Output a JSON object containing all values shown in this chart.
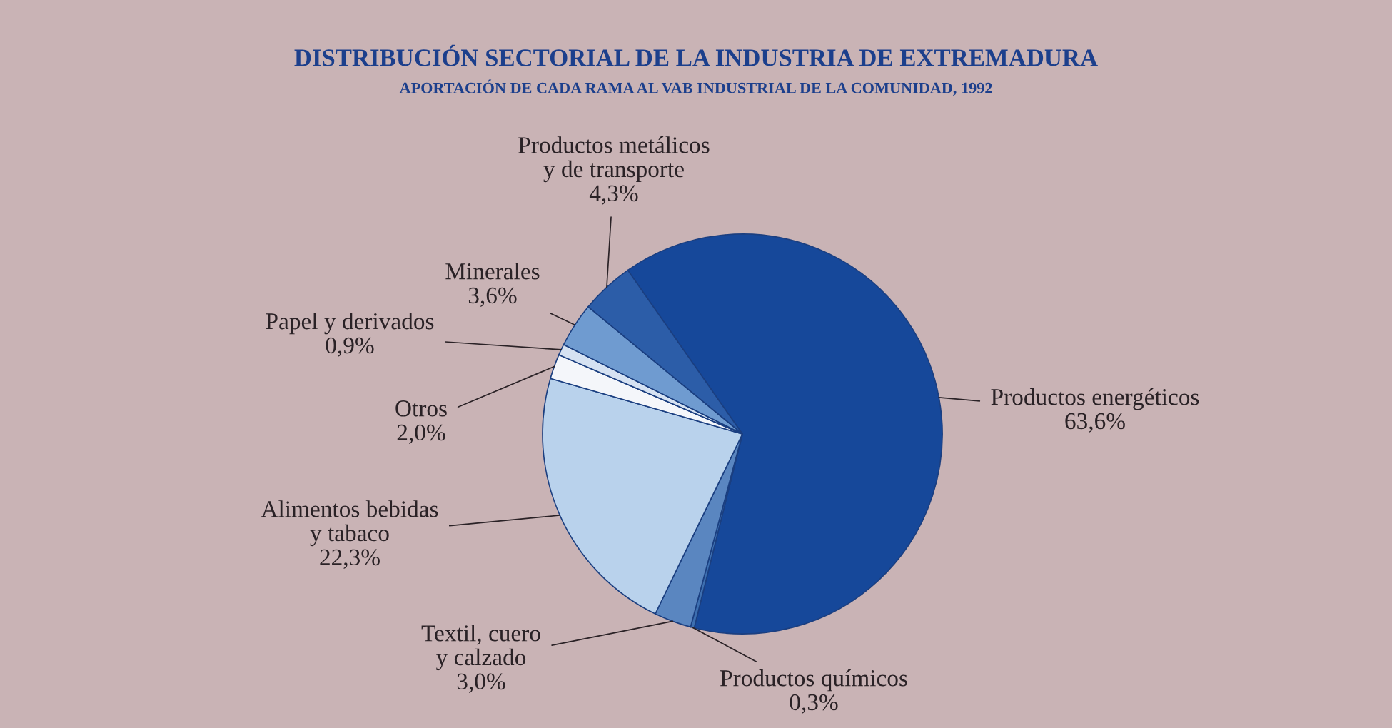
{
  "chart_data": {
    "type": "pie",
    "title": "DISTRIBUCIÓN SECTORIAL DE LA INDUSTRIA DE EXTREMADURA",
    "subtitle": "APORTACIÓN DE CADA RAMA AL VAB INDUSTRIAL DE LA COMUNIDAD, 1992",
    "categories": [
      "Productos energéticos",
      "Productos químicos",
      "Textil, cuero\ny calzado",
      "Alimentos bebidas\ny tabaco",
      "Otros",
      "Papel y derivados",
      "Minerales",
      "Productos metálicos\ny de transporte"
    ],
    "values": [
      63.6,
      0.3,
      3.0,
      22.3,
      2.0,
      0.9,
      3.6,
      4.3
    ],
    "colors": [
      "#16489a",
      "#3d6fb0",
      "#5a86c0",
      "#b9d2ec",
      "#f4f6fa",
      "#d6e2f2",
      "#6f9bd0",
      "#2c5da8"
    ],
    "value_labels": [
      "63,6%",
      "0,3%",
      "3,0%",
      "22,3%",
      "2,0%",
      "0,9%",
      "3,6%",
      "4,3%"
    ]
  }
}
